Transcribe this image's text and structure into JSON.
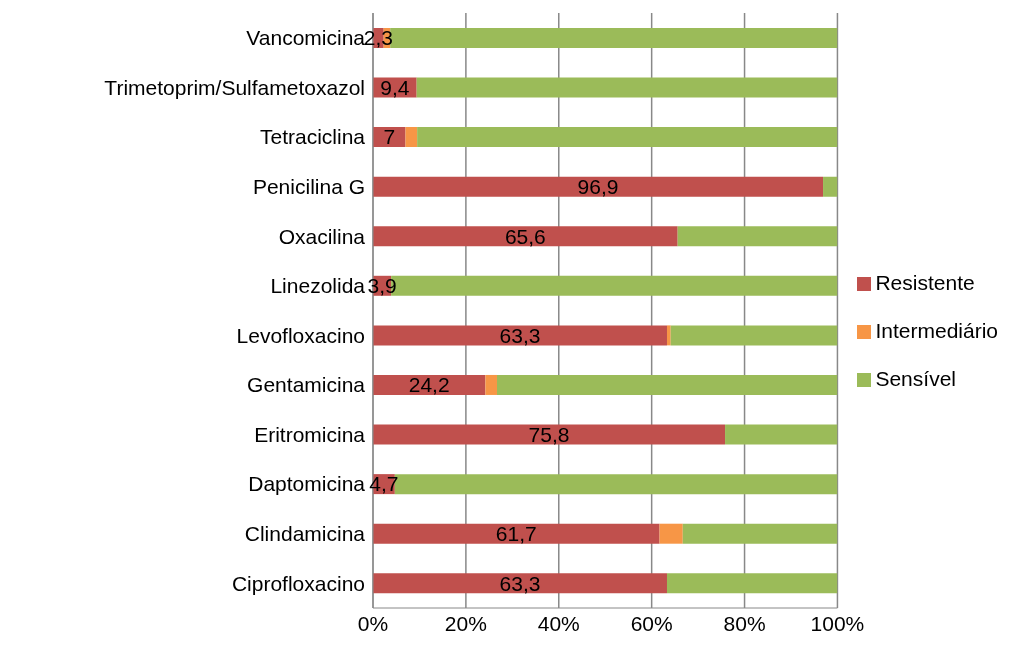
{
  "chart_data": {
    "type": "bar",
    "orientation": "horizontal",
    "stacked": true,
    "categories": [
      "Vancomicina",
      "Trimetoprim/Sulfametoxazol",
      "Tetraciclina",
      "Penicilina G",
      "Oxacilina",
      "Linezolida",
      "Levofloxacino",
      "Gentamicina",
      "Eritromicina",
      "Daptomicina",
      "Clindamicina",
      "Ciprofloxacino"
    ],
    "series": [
      {
        "name": "Resistente",
        "color": "#c0504d",
        "values": [
          2.3,
          9.4,
          7,
          96.9,
          65.6,
          3.9,
          63.3,
          24.2,
          75.8,
          4.7,
          61.7,
          63.3
        ],
        "value_labels": [
          "2,3",
          "9,4",
          "7",
          "96,9",
          "65,6",
          "3,9",
          "63,3",
          "24,2",
          "75,8",
          "4,7",
          "61,7",
          "63,3"
        ]
      },
      {
        "name": "Intermediário",
        "color": "#f79646",
        "values": [
          1.4,
          0,
          2.5,
          0,
          0,
          0,
          0.8,
          2.5,
          0,
          0,
          5,
          0
        ]
      },
      {
        "name": "Sensível",
        "color": "#9bbb59",
        "values": [
          96.3,
          90.6,
          90.5,
          3.1,
          34.4,
          96.1,
          35.9,
          73.3,
          24.2,
          95.3,
          33.3,
          36.7
        ]
      }
    ],
    "xlim": [
      0,
      100
    ],
    "xticks": [
      {
        "value": 0,
        "label": "0%"
      },
      {
        "value": 20,
        "label": "20%"
      },
      {
        "value": 40,
        "label": "40%"
      },
      {
        "value": 60,
        "label": "60%"
      },
      {
        "value": 80,
        "label": "80%"
      },
      {
        "value": 100,
        "label": "100%"
      }
    ],
    "grid": "x",
    "legend": "right"
  }
}
